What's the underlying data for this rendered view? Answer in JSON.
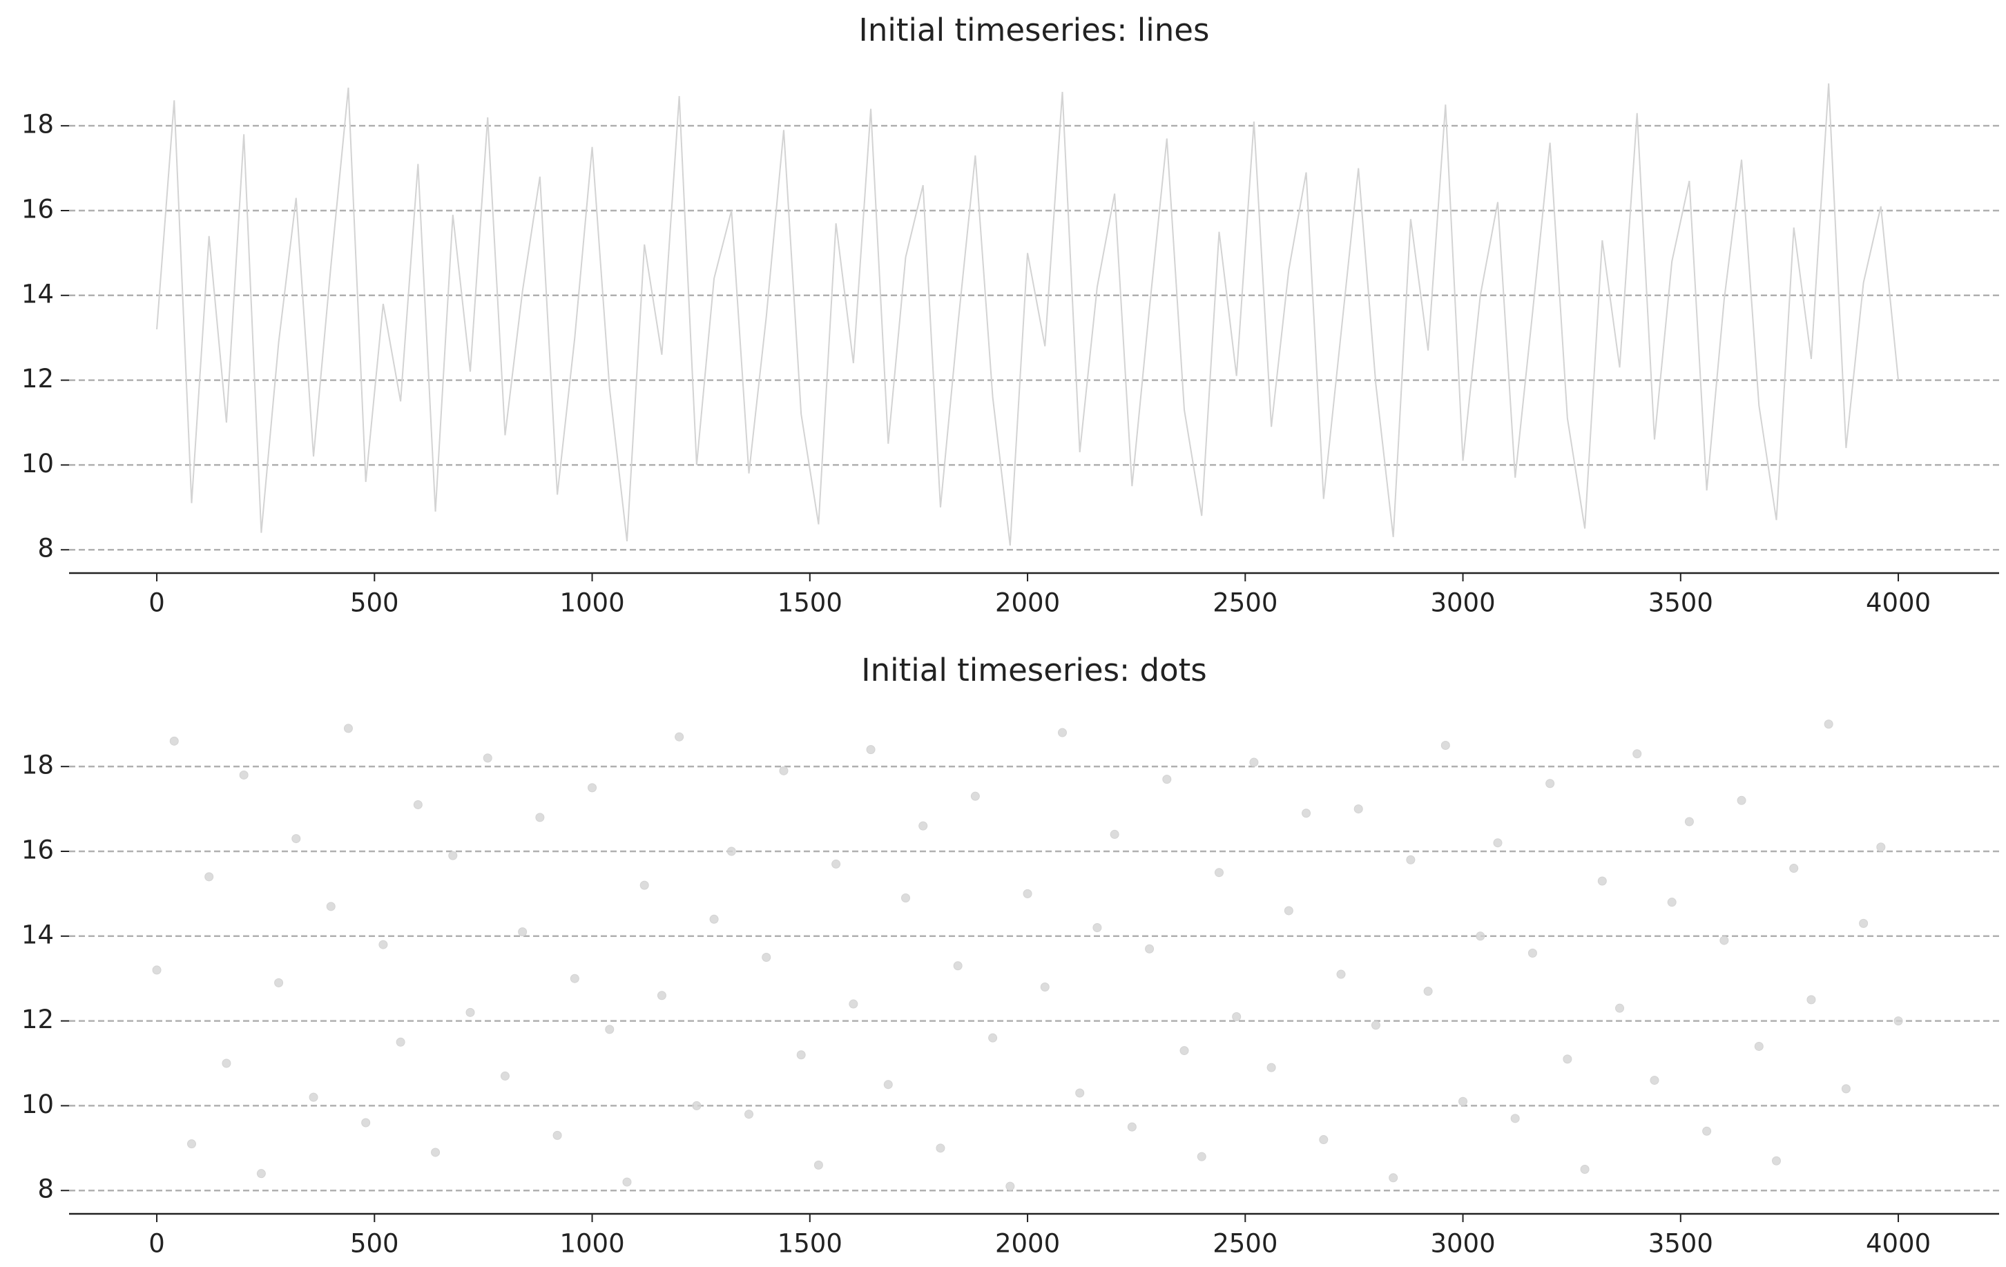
{
  "chart_data": [
    {
      "type": "line",
      "title": "Initial timeseries: lines",
      "color": "#d3d3d3",
      "grid": true,
      "xlim": [
        -201.5,
        4231.5
      ],
      "ylim": [
        7.45,
        19.55
      ],
      "xticks": [
        0,
        500,
        1000,
        1500,
        2000,
        2500,
        3000,
        3500,
        4000
      ],
      "yticks": [
        8,
        10,
        12,
        14,
        16,
        18
      ],
      "x": [
        0,
        40,
        80,
        120,
        160,
        200,
        240,
        280,
        320,
        360,
        400,
        440,
        480,
        520,
        560,
        600,
        640,
        680,
        720,
        760,
        800,
        840,
        880,
        920,
        960,
        1000,
        1040,
        1080,
        1120,
        1160,
        1200,
        1240,
        1280,
        1320,
        1360,
        1400,
        1440,
        1480,
        1520,
        1560,
        1600,
        1640,
        1680,
        1720,
        1760,
        1800,
        1840,
        1880,
        1920,
        1960,
        2000,
        2040,
        2080,
        2120,
        2160,
        2200,
        2240,
        2280,
        2320,
        2360,
        2400,
        2440,
        2480,
        2520,
        2560,
        2600,
        2640,
        2680,
        2720,
        2760,
        2800,
        2840,
        2880,
        2920,
        2960,
        3000,
        3040,
        3080,
        3120,
        3160,
        3200,
        3240,
        3280,
        3320,
        3360,
        3400,
        3440,
        3480,
        3520,
        3560,
        3600,
        3640,
        3680,
        3720,
        3760,
        3800,
        3840,
        3880,
        3920,
        3960,
        4000
      ],
      "values": [
        13.2,
        18.6,
        9.1,
        15.4,
        11.0,
        17.8,
        8.4,
        12.9,
        16.3,
        10.2,
        14.7,
        18.9,
        9.6,
        13.8,
        11.5,
        17.1,
        8.9,
        15.9,
        12.2,
        18.2,
        10.7,
        14.1,
        16.8,
        9.3,
        13.0,
        17.5,
        11.8,
        8.2,
        15.2,
        12.6,
        18.7,
        10.0,
        14.4,
        16.0,
        9.8,
        13.5,
        17.9,
        11.2,
        8.6,
        15.7,
        12.4,
        18.4,
        10.5,
        14.9,
        16.6,
        9.0,
        13.3,
        17.3,
        11.6,
        8.1,
        15.0,
        12.8,
        18.8,
        10.3,
        14.2,
        16.4,
        9.5,
        13.7,
        17.7,
        11.3,
        8.8,
        15.5,
        12.1,
        18.1,
        10.9,
        14.6,
        16.9,
        9.2,
        13.1,
        17.0,
        11.9,
        8.3,
        15.8,
        12.7,
        18.5,
        10.1,
        14.0,
        16.2,
        9.7,
        13.6,
        17.6,
        11.1,
        8.5,
        15.3,
        12.3,
        18.3,
        10.6,
        14.8,
        16.7,
        9.4,
        13.9,
        17.2,
        11.4,
        8.7,
        15.6,
        12.5,
        19.0,
        10.4,
        14.3,
        16.1,
        12.0
      ]
    },
    {
      "type": "scatter",
      "title": "Initial timeseries: dots",
      "color": "#d3d3d3",
      "grid": true,
      "xlim": [
        -201.5,
        4231.5
      ],
      "ylim": [
        7.45,
        19.55
      ],
      "xticks": [
        0,
        500,
        1000,
        1500,
        2000,
        2500,
        3000,
        3500,
        4000
      ],
      "yticks": [
        8,
        10,
        12,
        14,
        16,
        18
      ],
      "x": [
        0,
        40,
        80,
        120,
        160,
        200,
        240,
        280,
        320,
        360,
        400,
        440,
        480,
        520,
        560,
        600,
        640,
        680,
        720,
        760,
        800,
        840,
        880,
        920,
        960,
        1000,
        1040,
        1080,
        1120,
        1160,
        1200,
        1240,
        1280,
        1320,
        1360,
        1400,
        1440,
        1480,
        1520,
        1560,
        1600,
        1640,
        1680,
        1720,
        1760,
        1800,
        1840,
        1880,
        1920,
        1960,
        2000,
        2040,
        2080,
        2120,
        2160,
        2200,
        2240,
        2280,
        2320,
        2360,
        2400,
        2440,
        2480,
        2520,
        2560,
        2600,
        2640,
        2680,
        2720,
        2760,
        2800,
        2840,
        2880,
        2920,
        2960,
        3000,
        3040,
        3080,
        3120,
        3160,
        3200,
        3240,
        3280,
        3320,
        3360,
        3400,
        3440,
        3480,
        3520,
        3560,
        3600,
        3640,
        3680,
        3720,
        3760,
        3800,
        3840,
        3880,
        3920,
        3960,
        4000
      ],
      "values": [
        13.2,
        18.6,
        9.1,
        15.4,
        11.0,
        17.8,
        8.4,
        12.9,
        16.3,
        10.2,
        14.7,
        18.9,
        9.6,
        13.8,
        11.5,
        17.1,
        8.9,
        15.9,
        12.2,
        18.2,
        10.7,
        14.1,
        16.8,
        9.3,
        13.0,
        17.5,
        11.8,
        8.2,
        15.2,
        12.6,
        18.7,
        10.0,
        14.4,
        16.0,
        9.8,
        13.5,
        17.9,
        11.2,
        8.6,
        15.7,
        12.4,
        18.4,
        10.5,
        14.9,
        16.6,
        9.0,
        13.3,
        17.3,
        11.6,
        8.1,
        15.0,
        12.8,
        18.8,
        10.3,
        14.2,
        16.4,
        9.5,
        13.7,
        17.7,
        11.3,
        8.8,
        15.5,
        12.1,
        18.1,
        10.9,
        14.6,
        16.9,
        9.2,
        13.1,
        17.0,
        11.9,
        8.3,
        15.8,
        12.7,
        18.5,
        10.1,
        14.0,
        16.2,
        9.7,
        13.6,
        17.6,
        11.1,
        8.5,
        15.3,
        12.3,
        18.3,
        10.6,
        14.8,
        16.7,
        9.4,
        13.9,
        17.2,
        11.4,
        8.7,
        15.6,
        12.5,
        19.0,
        10.4,
        14.3,
        16.1,
        12.0
      ]
    }
  ]
}
